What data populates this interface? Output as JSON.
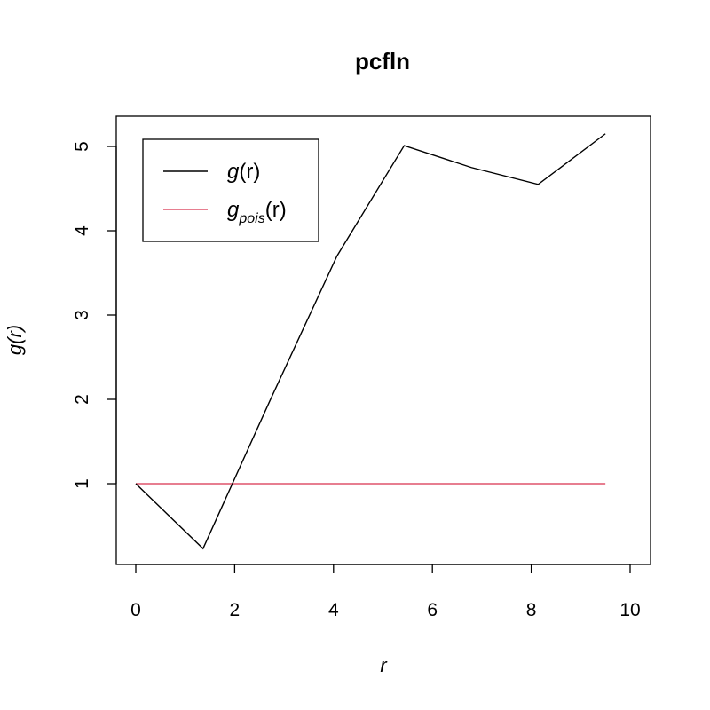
{
  "chart_data": {
    "type": "line",
    "title": "pcfln",
    "xlabel": "r",
    "ylabel": "g(r)",
    "xlim": [
      0,
      10
    ],
    "ylim": [
      0.2,
      5.2
    ],
    "x_ticks": [
      0,
      2,
      4,
      6,
      8,
      10
    ],
    "y_ticks": [
      1,
      2,
      3,
      4,
      5
    ],
    "grid": false,
    "legend_position": "top-left",
    "series": [
      {
        "name": "g(r)",
        "legend_main": "g",
        "legend_sub": "",
        "legend_tail": "(r)",
        "color": "#000000",
        "x": [
          0,
          1.36,
          2.71,
          4.07,
          5.43,
          6.79,
          8.14,
          9.5
        ],
        "y": [
          1.0,
          0.23,
          1.98,
          3.7,
          5.01,
          4.75,
          4.55,
          5.15
        ]
      },
      {
        "name": "g_pois(r)",
        "legend_main": "g",
        "legend_sub": "pois",
        "legend_tail": "(r)",
        "color": "#DF536B",
        "x": [
          0,
          9.5
        ],
        "y": [
          1,
          1
        ]
      }
    ]
  }
}
